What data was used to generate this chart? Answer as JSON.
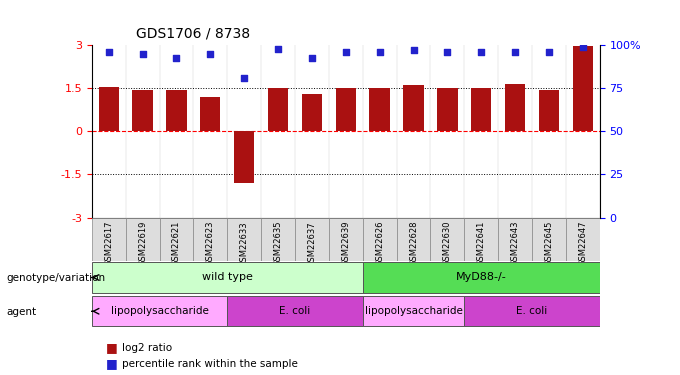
{
  "title": "GDS1706 / 8738",
  "samples": [
    "GSM22617",
    "GSM22619",
    "GSM22621",
    "GSM22623",
    "GSM22633",
    "GSM22635",
    "GSM22637",
    "GSM22639",
    "GSM22626",
    "GSM22628",
    "GSM22630",
    "GSM22641",
    "GSM22643",
    "GSM22645",
    "GSM22647"
  ],
  "log2_ratio": [
    1.55,
    1.45,
    1.45,
    1.2,
    -1.8,
    1.5,
    1.3,
    1.5,
    1.5,
    1.6,
    1.5,
    1.5,
    1.65,
    1.45,
    2.95
  ],
  "percentile_y": [
    2.75,
    2.68,
    2.55,
    2.68,
    1.85,
    2.85,
    2.55,
    2.75,
    2.75,
    2.82,
    2.75,
    2.75,
    2.75,
    2.75,
    2.93
  ],
  "bar_color": "#aa1111",
  "dot_color": "#2222cc",
  "ylim": [
    -3,
    3
  ],
  "yticks_left": [
    -3,
    -1.5,
    0,
    1.5,
    3
  ],
  "ytick_labels_left": [
    "-3",
    "-1.5",
    "0",
    "1.5",
    "3"
  ],
  "yticks_right_pos": [
    -3,
    -1.5,
    0,
    1.5,
    3
  ],
  "ytick_labels_right": [
    "0",
    "25",
    "50",
    "75",
    "100%"
  ],
  "hline_dotted": [
    -1.5,
    1.5
  ],
  "hline_red_dashed": 0,
  "genotype_groups": [
    {
      "label": "wild type",
      "start": 0,
      "end": 8,
      "color": "#ccffcc"
    },
    {
      "label": "MyD88-/-",
      "start": 8,
      "end": 15,
      "color": "#55dd55"
    }
  ],
  "agent_groups": [
    {
      "label": "lipopolysaccharide",
      "start": 0,
      "end": 4,
      "color": "#ffaaff"
    },
    {
      "label": "E. coli",
      "start": 4,
      "end": 8,
      "color": "#cc44cc"
    },
    {
      "label": "lipopolysaccharide",
      "start": 8,
      "end": 11,
      "color": "#ffaaff"
    },
    {
      "label": "E. coli",
      "start": 11,
      "end": 15,
      "color": "#cc44cc"
    }
  ],
  "legend_items": [
    {
      "label": "log2 ratio",
      "color": "#aa1111"
    },
    {
      "label": "percentile rank within the sample",
      "color": "#2222cc"
    }
  ]
}
